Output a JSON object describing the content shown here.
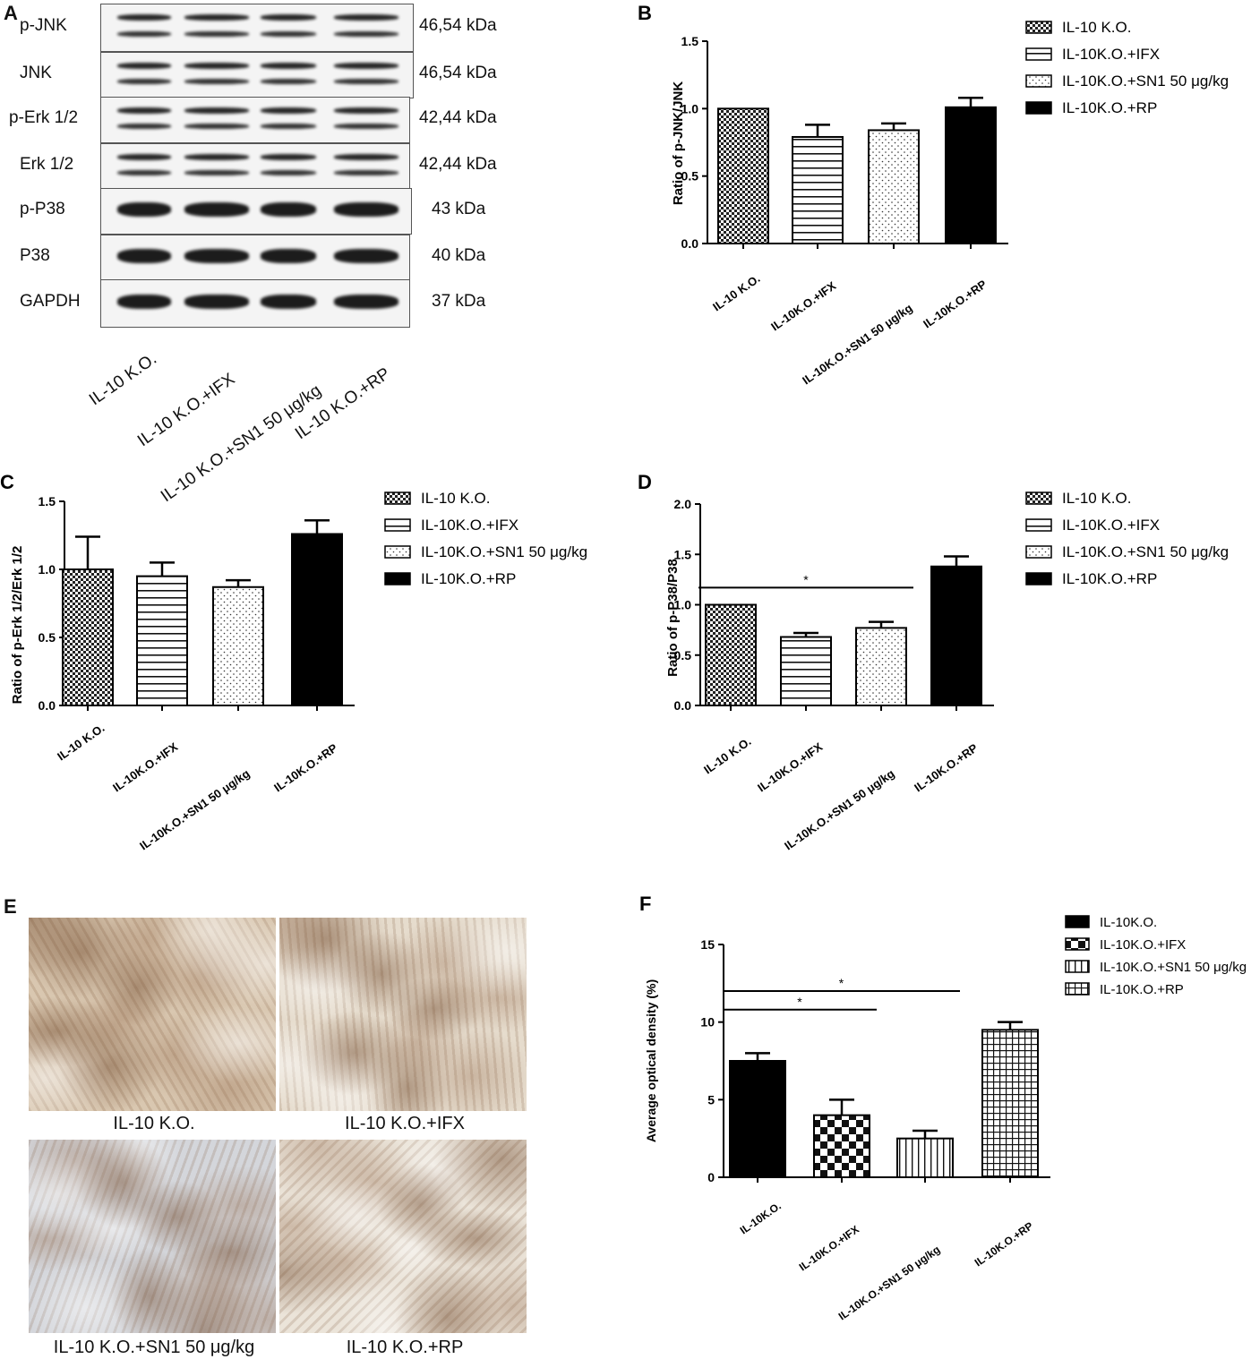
{
  "panel_a": {
    "letter": "A",
    "rows": [
      {
        "label": "p-JNK",
        "kda": "46,54 kDa"
      },
      {
        "label": "JNK",
        "kda": "46,54 kDa"
      },
      {
        "label": "p-Erk 1/2",
        "kda": "42,44 kDa"
      },
      {
        "label": "Erk 1/2",
        "kda": "42,44 kDa"
      },
      {
        "label": "p-P38",
        "kda": "43 kDa"
      },
      {
        "label": "P38",
        "kda": "40 kDa"
      },
      {
        "label": "GAPDH",
        "kda": "37 kDa"
      }
    ],
    "lanes": [
      "IL-10 K.O.",
      "IL-10 K.O.+IFX",
      "IL-10 K.O.+SN1 50 μg/kg",
      "IL-10 K.O.+RP"
    ]
  },
  "panel_e": {
    "letter": "E",
    "captions": [
      "IL-10 K.O.",
      "IL-10 K.O.+IFX",
      "IL-10 K.O.+SN1 50 μg/kg",
      "IL-10 K.O.+RP"
    ]
  },
  "chart_data": [
    {
      "panel": "B",
      "type": "bar",
      "ylabel": "Ratio of p-JNK/JNK",
      "categories": [
        "IL-10 K.O.",
        "IL-10K.O.+IFX",
        "IL-10K.O.+SN1 50 μg/kg",
        "IL-10K.O.+RP"
      ],
      "values": [
        1.0,
        0.79,
        0.84,
        1.01
      ],
      "errors": [
        0,
        0.09,
        0.05,
        0.07
      ],
      "patterns": [
        "checker",
        "hlines",
        "dots",
        "solid"
      ],
      "ylim": [
        0,
        1.5
      ],
      "yticks": [
        "0.0",
        "0.5",
        "1.0",
        "1.5"
      ],
      "legend": [
        "IL-10 K.O.",
        "IL-10K.O.+IFX",
        "IL-10K.O.+SN1 50 μg/kg",
        "IL-10K.O.+RP"
      ],
      "legend_position": "right",
      "significance": []
    },
    {
      "panel": "C",
      "type": "bar",
      "ylabel": "Ratio of p-Erk 1/2/Erk 1/2",
      "categories": [
        "IL-10 K.O.",
        "IL-10K.O.+IFX",
        "IL-10K.O.+SN1 50 μg/kg",
        "IL-10K.O.+RP"
      ],
      "values": [
        1.0,
        0.95,
        0.87,
        1.26
      ],
      "errors": [
        0.24,
        0.1,
        0.05,
        0.1
      ],
      "patterns": [
        "checker",
        "hlines",
        "dots",
        "solid"
      ],
      "ylim": [
        0,
        1.5
      ],
      "yticks": [
        "0.0",
        "0.5",
        "1.0",
        "1.5"
      ],
      "legend": [
        "IL-10 K.O.",
        "IL-10K.O.+IFX",
        "IL-10K.O.+SN1 50 μg/kg",
        "IL-10K.O.+RP"
      ],
      "legend_position": "right",
      "significance": []
    },
    {
      "panel": "D",
      "type": "bar",
      "ylabel": "Ratio of p-P38/P38",
      "categories": [
        "IL-10 K.O.",
        "IL-10K.O.+IFX",
        "IL-10K.O.+SN1 50 μg/kg",
        "IL-10K.O.+RP"
      ],
      "values": [
        1.0,
        0.68,
        0.77,
        1.38
      ],
      "errors": [
        0,
        0.04,
        0.06,
        0.1
      ],
      "patterns": [
        "checker",
        "hlines",
        "dots",
        "solid"
      ],
      "ylim": [
        0,
        2.0
      ],
      "yticks": [
        "0.0",
        "0.5",
        "1.0",
        "1.5",
        "2.0"
      ],
      "legend": [
        "IL-10 K.O.",
        "IL-10K.O.+IFX",
        "IL-10K.O.+SN1 50 μg/kg",
        "IL-10K.O.+RP"
      ],
      "legend_position": "right",
      "significance": [
        {
          "from": 0,
          "to": 2,
          "label": "*",
          "y": 1.17
        }
      ]
    },
    {
      "panel": "F",
      "type": "bar",
      "ylabel": "Average optical density (%)",
      "categories": [
        "IL-10K.O.",
        "IL-10K.O.+IFX",
        "IL-10K.O.+SN1 50 μg/kg",
        "IL-10K.O.+RP"
      ],
      "values": [
        7.5,
        4.0,
        2.5,
        9.5
      ],
      "errors": [
        0.5,
        1.0,
        0.5,
        0.5
      ],
      "patterns": [
        "solid",
        "checker-large",
        "vlines",
        "grid"
      ],
      "ylim": [
        0,
        15
      ],
      "yticks": [
        "0",
        "5",
        "10",
        "15"
      ],
      "legend": [
        "IL-10K.O.",
        "IL-10K.O.+IFX",
        "IL-10K.O.+SN1 50 μg/kg",
        "IL-10K.O.+RP"
      ],
      "legend_position": "top-right",
      "significance": [
        {
          "from": 0,
          "to": 2,
          "label": "*",
          "y": 12.0
        },
        {
          "from": 0,
          "to": 1,
          "label": "*",
          "y": 10.8
        }
      ]
    }
  ]
}
